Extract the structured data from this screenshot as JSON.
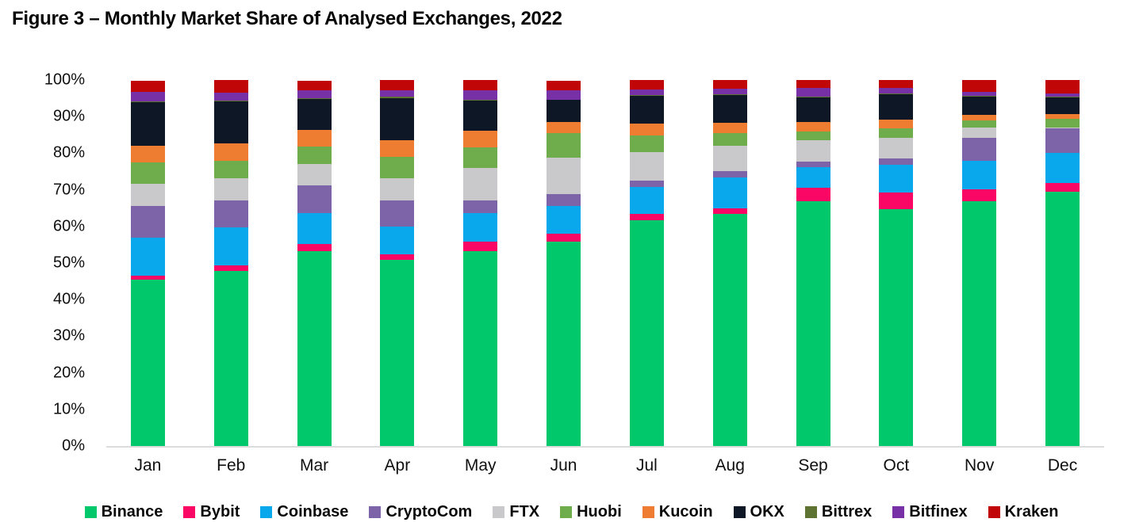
{
  "title": "Figure 3 – Monthly Market Share of Analysed Exchanges, 2022",
  "chart_data": {
    "type": "bar",
    "stacked": true,
    "percent_stack": true,
    "title": "Figure 3 – Monthly Market Share of Analysed Exchanges, 2022",
    "xlabel": "",
    "ylabel": "",
    "ylim": [
      0,
      100
    ],
    "grid": false,
    "legend_position": "bottom",
    "y_ticks": [
      "100%",
      "90%",
      "80%",
      "70%",
      "60%",
      "50%",
      "40%",
      "30%",
      "20%",
      "10%",
      "0%"
    ],
    "categories": [
      "Jan",
      "Feb",
      "Mar",
      "Apr",
      "May",
      "Jun",
      "Jul",
      "Aug",
      "Sep",
      "Oct",
      "Nov",
      "Dec"
    ],
    "series": [
      {
        "name": "Binance",
        "color": "#01C96B",
        "values": [
          45.4,
          47.9,
          53.3,
          51.0,
          53.2,
          55.8,
          61.6,
          63.4,
          66.8,
          64.8,
          66.8,
          69.5
        ]
      },
      {
        "name": "Bybit",
        "color": "#FA0766",
        "values": [
          1.1,
          1.6,
          1.8,
          1.4,
          2.7,
          2.2,
          1.8,
          1.6,
          3.7,
          4.5,
          3.4,
          2.4
        ]
      },
      {
        "name": "Coinbase",
        "color": "#09A7EB",
        "values": [
          10.5,
          10.2,
          8.5,
          7.6,
          7.8,
          7.7,
          7.4,
          8.3,
          5.8,
          7.6,
          7.8,
          8.3
        ]
      },
      {
        "name": "CryptoCom",
        "color": "#7D64A8",
        "values": [
          8.7,
          7.5,
          7.6,
          7.2,
          3.5,
          3.1,
          1.7,
          1.8,
          1.4,
          1.6,
          6.3,
          6.7
        ]
      },
      {
        "name": "FTX",
        "color": "#C9C9CB",
        "values": [
          5.9,
          6.0,
          5.9,
          6.0,
          8.7,
          10.1,
          7.9,
          6.9,
          5.8,
          5.8,
          2.7,
          0.1
        ]
      },
      {
        "name": "Huobi",
        "color": "#6FAC4B",
        "values": [
          6.0,
          4.7,
          4.7,
          5.8,
          5.8,
          6.7,
          4.5,
          3.5,
          2.4,
          2.6,
          2.0,
          2.4
        ]
      },
      {
        "name": "Kucoin",
        "color": "#EE7D31",
        "values": [
          4.5,
          4.9,
          4.5,
          4.7,
          4.5,
          3.0,
          3.2,
          2.9,
          2.6,
          2.2,
          1.4,
          1.2
        ]
      },
      {
        "name": "OKX",
        "color": "#0D1726",
        "values": [
          11.8,
          11.5,
          8.5,
          11.5,
          8.2,
          5.9,
          7.5,
          7.4,
          6.8,
          7.0,
          5.1,
          4.7
        ]
      },
      {
        "name": "Bittrex",
        "color": "#5E7231",
        "values": [
          0.3,
          0.2,
          0.3,
          0.4,
          0.2,
          0.2,
          0.2,
          0.3,
          0.2,
          0.2,
          0.2,
          0.2
        ]
      },
      {
        "name": "Bitfinex",
        "color": "#7730A6",
        "values": [
          2.5,
          2.2,
          2.0,
          1.7,
          2.6,
          2.4,
          1.7,
          1.6,
          2.4,
          1.5,
          1.1,
          0.9
        ]
      },
      {
        "name": "Kraken",
        "color": "#C00606",
        "values": [
          3.2,
          3.4,
          2.8,
          2.8,
          2.8,
          2.8,
          2.5,
          2.3,
          2.1,
          2.2,
          3.2,
          3.6
        ]
      }
    ]
  }
}
